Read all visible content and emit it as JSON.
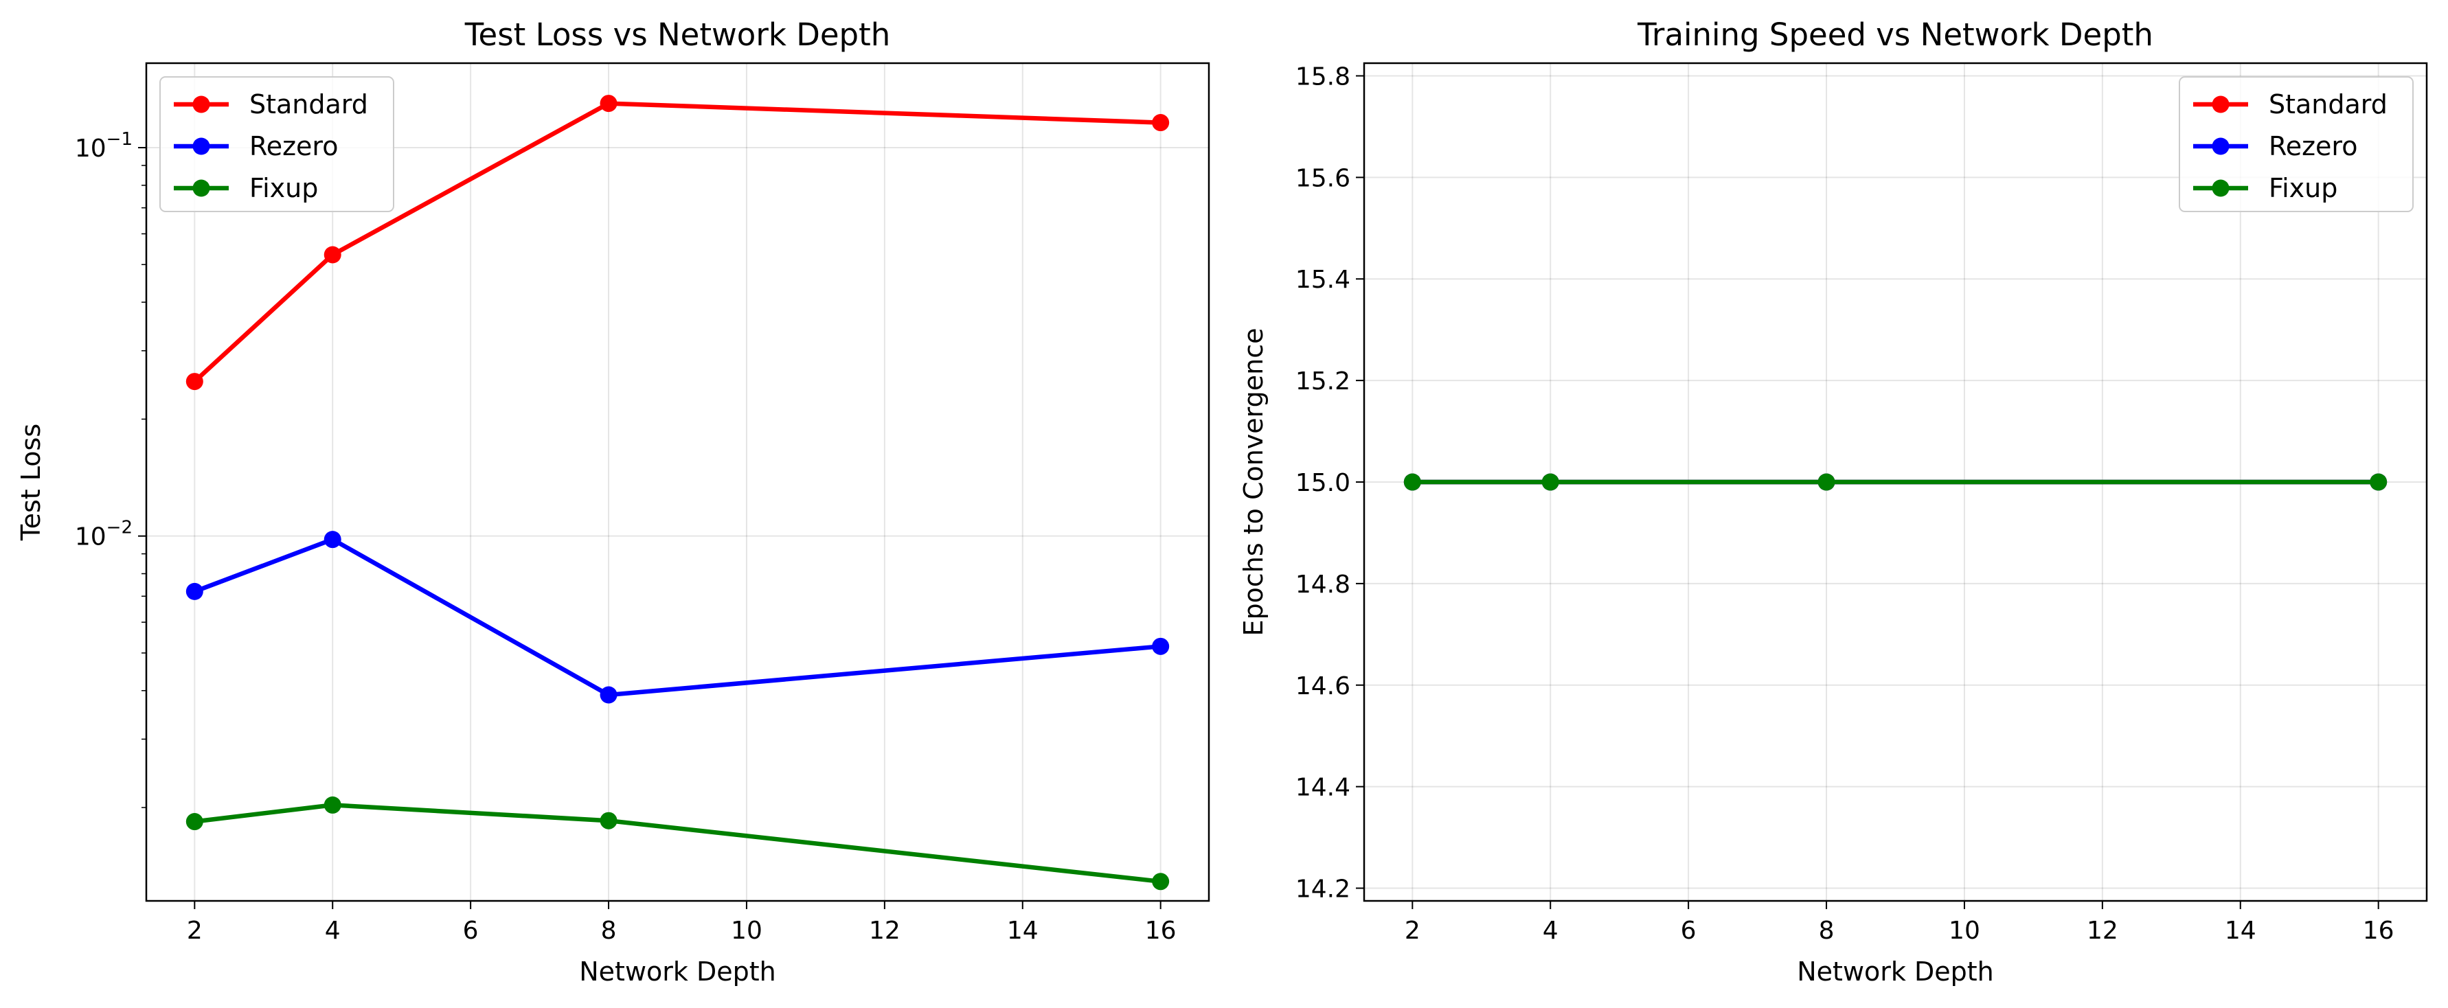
{
  "chart_data": [
    {
      "type": "line",
      "title": "Test Loss vs Network Depth",
      "xlabel": "Network Depth",
      "ylabel": "Test Loss",
      "yscale": "log",
      "xlim": [
        1.3,
        16.7
      ],
      "ylim": [
        0.00115,
        0.165
      ],
      "xticks": [
        "2",
        "4",
        "6",
        "8",
        "10",
        "12",
        "14",
        "16"
      ],
      "yticks": [
        {
          "value": 0.01,
          "base": "10",
          "exp": "−2"
        },
        {
          "value": 0.1,
          "base": "10",
          "exp": "−1"
        }
      ],
      "grid": true,
      "legend": "top-left",
      "x": [
        2,
        4,
        8,
        16
      ],
      "series": [
        {
          "name": "Standard",
          "color": "#ff0000",
          "values": [
            0.025,
            0.053,
            0.13,
            0.116
          ]
        },
        {
          "name": "Rezero",
          "color": "#0000ff",
          "values": [
            0.0072,
            0.0098,
            0.0039,
            0.0052
          ]
        },
        {
          "name": "Fixup",
          "color": "#008000",
          "values": [
            0.00184,
            0.00203,
            0.00185,
            0.00129
          ]
        }
      ]
    },
    {
      "type": "line",
      "title": "Training Speed vs Network Depth",
      "xlabel": "Network Depth",
      "ylabel": "Epochs to Convergence",
      "yscale": "linear",
      "xlim": [
        1.3,
        16.7
      ],
      "ylim": [
        14.175,
        15.825
      ],
      "xticks": [
        "2",
        "4",
        "6",
        "8",
        "10",
        "12",
        "14",
        "16"
      ],
      "yticks": [
        "14.2",
        "14.4",
        "14.6",
        "14.8",
        "15.0",
        "15.2",
        "15.4",
        "15.6",
        "15.8"
      ],
      "grid": true,
      "legend": "top-right",
      "x": [
        2,
        4,
        8,
        16
      ],
      "series": [
        {
          "name": "Standard",
          "color": "#ff0000",
          "values": [
            15,
            15,
            15,
            15
          ]
        },
        {
          "name": "Rezero",
          "color": "#0000ff",
          "values": [
            15,
            15,
            15,
            15
          ]
        },
        {
          "name": "Fixup",
          "color": "#008000",
          "values": [
            15,
            15,
            15,
            15
          ]
        }
      ]
    }
  ]
}
